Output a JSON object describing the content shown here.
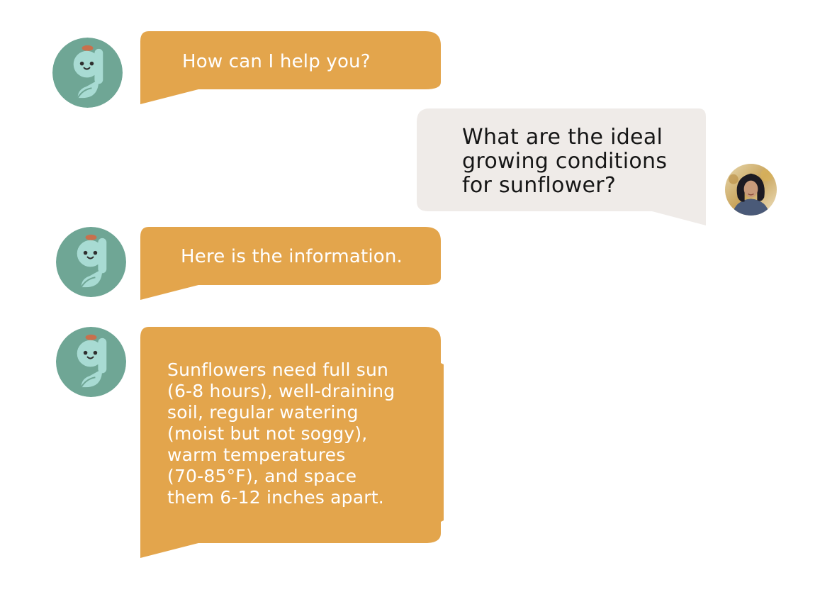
{
  "colors": {
    "bot_bubble": "#e3a54c",
    "user_bubble": "#efebe8",
    "bot_avatar_bg": "#6fa695",
    "bot_avatar_letter": "#a8dbd3",
    "bot_avatar_hat": "#c9704c",
    "bot_text": "#ffffff",
    "user_text": "#161616"
  },
  "chat": {
    "messages": [
      {
        "sender": "bot",
        "avatar_icon": "bot-g-mascot-icon",
        "text": "How can I help you?"
      },
      {
        "sender": "user",
        "avatar_icon": "user-profile-photo",
        "text": "What are the ideal\ngrowing conditions\nfor sunflower?"
      },
      {
        "sender": "bot",
        "avatar_icon": "bot-g-mascot-icon",
        "text": "Here is the information."
      },
      {
        "sender": "bot",
        "avatar_icon": "bot-g-mascot-icon",
        "text": "Sunflowers need full sun\n(6-8 hours), well-draining\nsoil, regular watering\n(moist but not soggy),\nwarm temperatures\n(70-85°F), and space\nthem 6-12 inches apart."
      }
    ]
  }
}
